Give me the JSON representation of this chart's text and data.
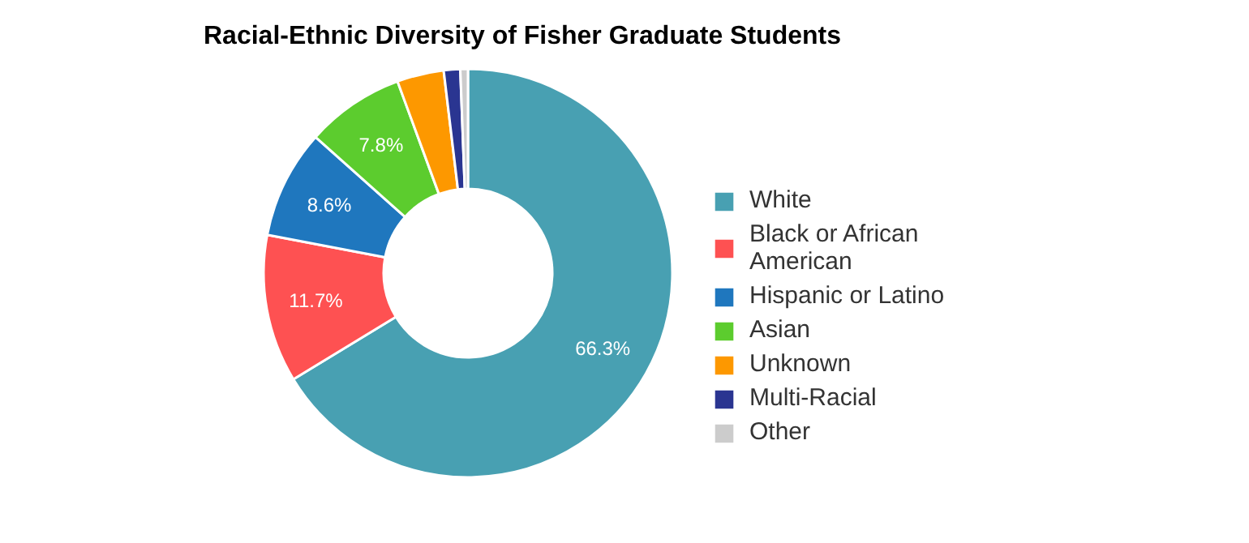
{
  "chart_data": {
    "type": "donut",
    "title": "Racial-Ethnic Diversity of Fisher Graduate Students",
    "categories": [
      "White",
      "Black or African American",
      "Hispanic or Latino",
      "Asian",
      "Unknown",
      "Multi-Racial",
      "Other"
    ],
    "values": [
      66.3,
      11.7,
      8.6,
      7.8,
      3.7,
      1.3,
      0.6
    ],
    "colors": [
      "#48a0b2",
      "#fe5152",
      "#1f77be",
      "#5ccc2e",
      "#fd9800",
      "#2a3591",
      "#cccccc"
    ],
    "value_labels": [
      "66.3%",
      "11.7%",
      "8.6%",
      "7.8%",
      null,
      null,
      null
    ],
    "legend": "right"
  }
}
